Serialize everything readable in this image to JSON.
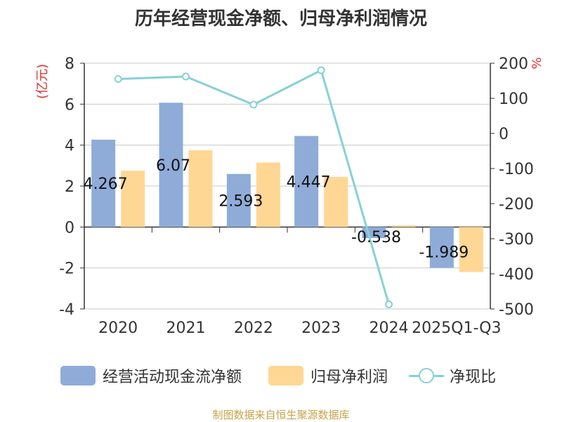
{
  "title": "历年经营现金净额、归母净利润情况",
  "source": "制图数据来自恒生聚源数据库",
  "colors": {
    "bar1": "#8facd8",
    "bar2": "#ffd794",
    "line": "#86d1d6",
    "unit_left": "#d9342b",
    "unit_right": "#d9342b",
    "axis": "#333333",
    "grid": "#c9c9c9"
  },
  "chart_data": {
    "type": "bar",
    "title": "历年经营现金净额、归母净利润情况",
    "categories": [
      "2020",
      "2021",
      "2022",
      "2023",
      "2024",
      "2025Q1-Q3"
    ],
    "left_axis": {
      "unit": "(亿元)",
      "ylim": [
        -4,
        8
      ],
      "ticks": [
        -4,
        -2,
        0,
        2,
        4,
        6,
        8
      ]
    },
    "right_axis": {
      "unit": "%",
      "ylim": [
        -500,
        200
      ],
      "ticks": [
        -500,
        -400,
        -300,
        -200,
        -100,
        0,
        100,
        200
      ]
    },
    "grid": true,
    "legend_position": "bottom",
    "series": [
      {
        "name": "经营活动现金流净额",
        "type": "bar",
        "axis": "left",
        "values": [
          4.267,
          6.07,
          2.593,
          4.447,
          -0.538,
          -1.989
        ],
        "labels": [
          "4.267",
          "6.07",
          "2.593",
          "4.447",
          "-0.538",
          "-1.989"
        ]
      },
      {
        "name": "归母净利润",
        "type": "bar",
        "axis": "left",
        "values": [
          2.75,
          3.75,
          3.15,
          2.45,
          0.08,
          -2.2
        ]
      },
      {
        "name": "净现比",
        "type": "line",
        "axis": "right",
        "values": [
          155,
          162,
          82,
          180,
          -487,
          null
        ]
      }
    ]
  }
}
